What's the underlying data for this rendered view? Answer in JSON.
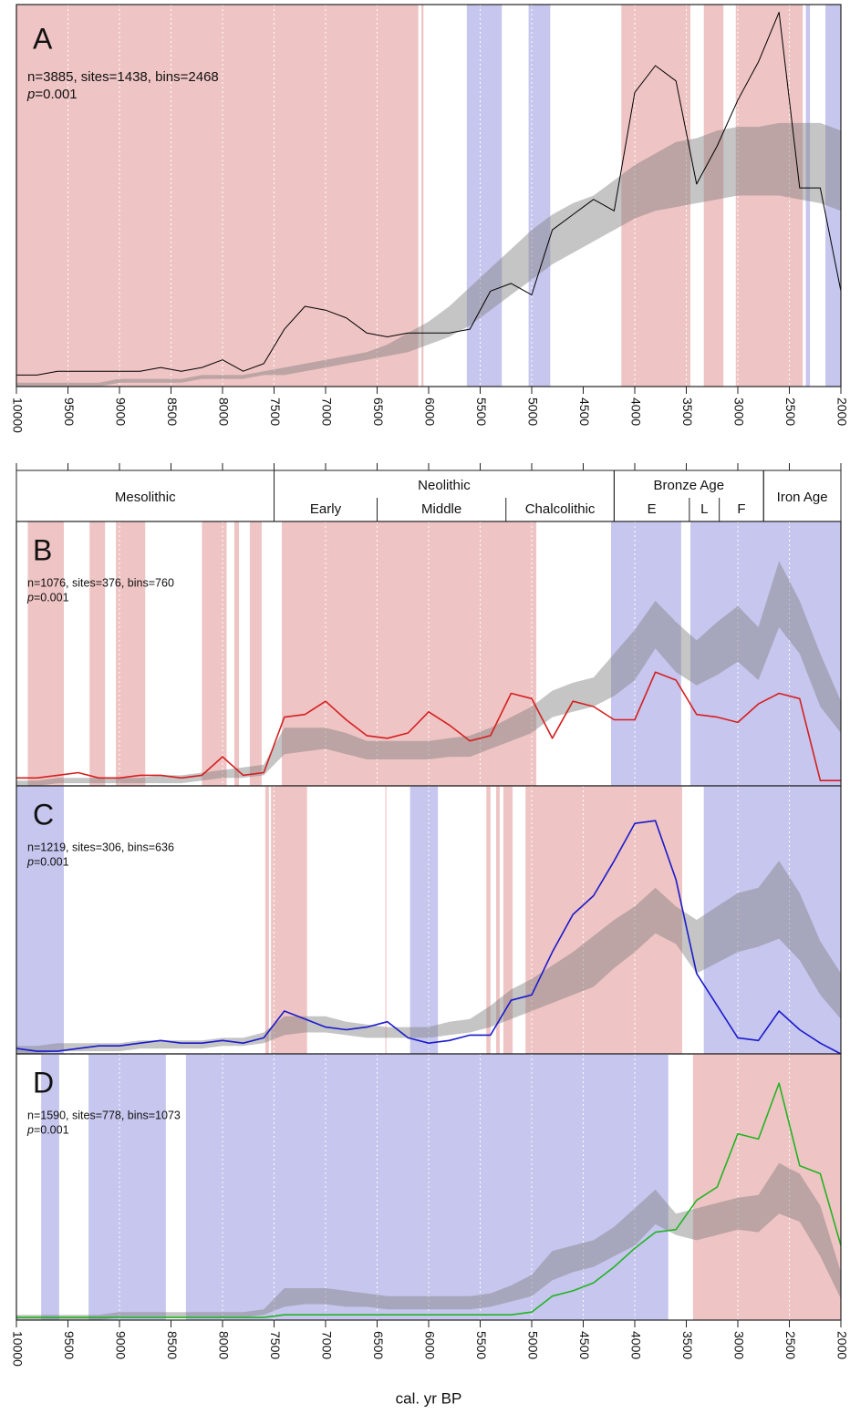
{
  "chart_data": [
    {
      "type": "line",
      "label": "A",
      "stats": "n=3885, sites=1438, bins=2468",
      "stat_symbol": "p",
      "stat_value": "=0.001",
      "xlim": [
        10000,
        2000
      ],
      "ylim": [
        0,
        1
      ],
      "grid": true,
      "color": "#000000",
      "xticks": [
        10000,
        9500,
        9000,
        8500,
        8000,
        7500,
        7000,
        6500,
        6000,
        5500,
        5000,
        4500,
        4000,
        3500,
        3000,
        2500,
        2000
      ],
      "x": [
        10000,
        9800,
        9600,
        9400,
        9200,
        9000,
        8800,
        8600,
        8400,
        8200,
        8000,
        7800,
        7600,
        7400,
        7200,
        7000,
        6800,
        6600,
        6400,
        6200,
        6000,
        5800,
        5600,
        5400,
        5200,
        5000,
        4800,
        4600,
        4400,
        4200,
        4000,
        3800,
        3600,
        3400,
        3200,
        3000,
        2800,
        2600,
        2400,
        2200,
        2000
      ],
      "values": [
        0.03,
        0.03,
        0.04,
        0.04,
        0.04,
        0.04,
        0.04,
        0.05,
        0.04,
        0.05,
        0.07,
        0.04,
        0.06,
        0.15,
        0.21,
        0.2,
        0.18,
        0.14,
        0.13,
        0.14,
        0.14,
        0.14,
        0.15,
        0.25,
        0.27,
        0.24,
        0.41,
        0.45,
        0.49,
        0.46,
        0.77,
        0.84,
        0.8,
        0.53,
        0.63,
        0.75,
        0.85,
        0.98,
        0.52,
        0.52,
        0.25
      ],
      "envelope": {
        "color": "#7f7f7f",
        "lower": [
          0.0,
          0.0,
          0.0,
          0.0,
          0.0,
          0.01,
          0.01,
          0.01,
          0.01,
          0.02,
          0.02,
          0.02,
          0.03,
          0.03,
          0.04,
          0.05,
          0.06,
          0.07,
          0.08,
          0.09,
          0.11,
          0.13,
          0.16,
          0.2,
          0.24,
          0.28,
          0.32,
          0.35,
          0.38,
          0.41,
          0.44,
          0.46,
          0.47,
          0.48,
          0.49,
          0.5,
          0.5,
          0.5,
          0.49,
          0.48,
          0.46
        ],
        "upper": [
          0.01,
          0.01,
          0.01,
          0.01,
          0.01,
          0.02,
          0.02,
          0.02,
          0.02,
          0.03,
          0.03,
          0.03,
          0.04,
          0.05,
          0.06,
          0.07,
          0.08,
          0.09,
          0.11,
          0.14,
          0.17,
          0.21,
          0.26,
          0.31,
          0.36,
          0.41,
          0.45,
          0.48,
          0.5,
          0.54,
          0.58,
          0.61,
          0.64,
          0.65,
          0.67,
          0.68,
          0.68,
          0.69,
          0.69,
          0.69,
          0.67
        ]
      },
      "positive_color": "#efc4c4",
      "negative_color": "#c6c6ee",
      "positive_bands": [
        [
          10000,
          6100
        ],
        [
          6070,
          6050
        ],
        [
          4130,
          3460
        ],
        [
          3330,
          3140
        ],
        [
          3020,
          2370
        ]
      ],
      "negative_bands": [
        [
          5630,
          5290
        ],
        [
          5030,
          4820
        ],
        [
          2340,
          2300
        ],
        [
          2150,
          2000
        ]
      ]
    },
    {
      "type": "line",
      "label": "B",
      "stats": "n=1076, sites=376, bins=760",
      "stat_symbol": "p",
      "stat_value": "=0.001",
      "xlim": [
        10000,
        2000
      ],
      "ylim": [
        0,
        1
      ],
      "grid": true,
      "color": "#d42020",
      "x": [
        10000,
        9800,
        9600,
        9400,
        9200,
        9000,
        8800,
        8600,
        8400,
        8200,
        8000,
        7800,
        7600,
        7400,
        7200,
        7000,
        6800,
        6600,
        6400,
        6200,
        6000,
        5800,
        5600,
        5400,
        5200,
        5000,
        4800,
        4600,
        4400,
        4200,
        4000,
        3800,
        3600,
        3400,
        3200,
        3000,
        2800,
        2600,
        2400,
        2200,
        2000
      ],
      "values": [
        0.03,
        0.03,
        0.04,
        0.05,
        0.03,
        0.03,
        0.04,
        0.04,
        0.03,
        0.04,
        0.11,
        0.04,
        0.05,
        0.26,
        0.27,
        0.32,
        0.25,
        0.19,
        0.18,
        0.2,
        0.28,
        0.23,
        0.17,
        0.19,
        0.35,
        0.33,
        0.18,
        0.32,
        0.3,
        0.25,
        0.25,
        0.43,
        0.4,
        0.27,
        0.26,
        0.24,
        0.31,
        0.35,
        0.33,
        0.02,
        0.02
      ],
      "envelope": {
        "color": "#7f7f7f",
        "lower": [
          0.0,
          0.0,
          0.01,
          0.01,
          0.01,
          0.01,
          0.01,
          0.01,
          0.01,
          0.02,
          0.03,
          0.03,
          0.04,
          0.12,
          0.13,
          0.14,
          0.12,
          0.1,
          0.1,
          0.1,
          0.1,
          0.11,
          0.11,
          0.14,
          0.17,
          0.2,
          0.26,
          0.28,
          0.3,
          0.34,
          0.4,
          0.52,
          0.43,
          0.38,
          0.42,
          0.47,
          0.4,
          0.6,
          0.5,
          0.3,
          0.2
        ],
        "upper": [
          0.02,
          0.02,
          0.03,
          0.03,
          0.03,
          0.03,
          0.03,
          0.04,
          0.04,
          0.05,
          0.06,
          0.07,
          0.08,
          0.22,
          0.22,
          0.22,
          0.2,
          0.17,
          0.17,
          0.17,
          0.17,
          0.18,
          0.19,
          0.22,
          0.26,
          0.3,
          0.36,
          0.39,
          0.41,
          0.5,
          0.59,
          0.7,
          0.62,
          0.55,
          0.62,
          0.68,
          0.6,
          0.85,
          0.7,
          0.5,
          0.32
        ]
      },
      "positive_color": "#efc4c4",
      "negative_color": "#c6c6ee",
      "positive_bands": [
        [
          9890,
          9540
        ],
        [
          9290,
          9140
        ],
        [
          9035,
          8750
        ],
        [
          8200,
          7960
        ],
        [
          7885,
          7840
        ],
        [
          7735,
          7620
        ],
        [
          7425,
          4955
        ]
      ],
      "negative_bands": [
        [
          4230,
          3550
        ],
        [
          3460,
          2000
        ]
      ]
    },
    {
      "type": "line",
      "label": "C",
      "stats": "n=1219, sites=306, bins=636",
      "stat_symbol": "p",
      "stat_value": "=0.001",
      "xlim": [
        10000,
        2000
      ],
      "ylim": [
        0,
        1
      ],
      "grid": true,
      "color": "#1a1acc",
      "x": [
        10000,
        9800,
        9600,
        9400,
        9200,
        9000,
        8800,
        8600,
        8400,
        8200,
        8000,
        7800,
        7600,
        7400,
        7200,
        7000,
        6800,
        6600,
        6400,
        6200,
        6000,
        5800,
        5600,
        5400,
        5200,
        5000,
        4800,
        4600,
        4400,
        4200,
        4000,
        3800,
        3600,
        3400,
        3200,
        3000,
        2800,
        2600,
        2400,
        2200,
        2000
      ],
      "values": [
        0.02,
        0.01,
        0.01,
        0.02,
        0.03,
        0.03,
        0.04,
        0.05,
        0.04,
        0.04,
        0.05,
        0.04,
        0.06,
        0.16,
        0.13,
        0.1,
        0.09,
        0.1,
        0.12,
        0.06,
        0.04,
        0.05,
        0.07,
        0.07,
        0.2,
        0.22,
        0.38,
        0.52,
        0.59,
        0.72,
        0.86,
        0.87,
        0.65,
        0.3,
        0.18,
        0.06,
        0.05,
        0.16,
        0.09,
        0.04,
        0.0
      ],
      "envelope": {
        "color": "#7f7f7f",
        "lower": [
          0.0,
          0.0,
          0.01,
          0.01,
          0.01,
          0.01,
          0.02,
          0.02,
          0.02,
          0.02,
          0.03,
          0.03,
          0.04,
          0.07,
          0.08,
          0.08,
          0.07,
          0.06,
          0.06,
          0.06,
          0.06,
          0.07,
          0.08,
          0.1,
          0.13,
          0.16,
          0.19,
          0.22,
          0.25,
          0.32,
          0.38,
          0.45,
          0.41,
          0.3,
          0.34,
          0.38,
          0.4,
          0.43,
          0.35,
          0.22,
          0.13
        ],
        "upper": [
          0.03,
          0.03,
          0.04,
          0.04,
          0.04,
          0.04,
          0.05,
          0.05,
          0.05,
          0.05,
          0.06,
          0.06,
          0.08,
          0.14,
          0.14,
          0.14,
          0.12,
          0.11,
          0.1,
          0.1,
          0.1,
          0.12,
          0.13,
          0.18,
          0.24,
          0.28,
          0.33,
          0.38,
          0.44,
          0.5,
          0.55,
          0.62,
          0.55,
          0.5,
          0.55,
          0.6,
          0.62,
          0.72,
          0.6,
          0.42,
          0.3
        ]
      },
      "positive_color": "#efc4c4",
      "negative_color": "#c6c6ee",
      "positive_bands": [
        [
          7585,
          7550
        ],
        [
          7530,
          7180
        ],
        [
          6420,
          6410
        ],
        [
          5440,
          5400
        ],
        [
          5345,
          5310
        ],
        [
          5275,
          5185
        ],
        [
          5060,
          3540
        ]
      ],
      "negative_bands": [
        [
          10000,
          9540
        ],
        [
          6180,
          5910
        ],
        [
          3330,
          2000
        ]
      ]
    },
    {
      "type": "line",
      "label": "D",
      "stats": "n=1590, sites=778, bins=1073",
      "stat_symbol": "p",
      "stat_value": "=0.001",
      "xlim": [
        10000,
        2000
      ],
      "ylim": [
        0,
        1
      ],
      "grid": true,
      "color": "#22b422",
      "xlabel": "cal. yr BP",
      "xticks": [
        10000,
        9500,
        9000,
        8500,
        8000,
        7500,
        7000,
        6500,
        6000,
        5500,
        5000,
        4500,
        4000,
        3500,
        3000,
        2500,
        2000
      ],
      "x": [
        10000,
        9800,
        9600,
        9400,
        9200,
        9000,
        8800,
        8600,
        8400,
        8200,
        8000,
        7800,
        7600,
        7400,
        7200,
        7000,
        6800,
        6600,
        6400,
        6200,
        6000,
        5800,
        5600,
        5400,
        5200,
        5000,
        4800,
        4600,
        4400,
        4200,
        4000,
        3800,
        3600,
        3400,
        3200,
        3000,
        2800,
        2600,
        2400,
        2200,
        2000
      ],
      "values": [
        0.01,
        0.01,
        0.01,
        0.01,
        0.01,
        0.01,
        0.01,
        0.01,
        0.01,
        0.01,
        0.01,
        0.01,
        0.01,
        0.02,
        0.02,
        0.02,
        0.02,
        0.02,
        0.02,
        0.02,
        0.02,
        0.02,
        0.02,
        0.02,
        0.02,
        0.03,
        0.09,
        0.11,
        0.14,
        0.2,
        0.27,
        0.33,
        0.34,
        0.45,
        0.5,
        0.7,
        0.68,
        0.89,
        0.58,
        0.55,
        0.28
      ],
      "envelope": {
        "color": "#7f7f7f",
        "lower": [
          0.0,
          0.0,
          0.0,
          0.0,
          0.0,
          0.01,
          0.01,
          0.01,
          0.01,
          0.01,
          0.01,
          0.01,
          0.02,
          0.05,
          0.06,
          0.06,
          0.05,
          0.05,
          0.04,
          0.04,
          0.04,
          0.04,
          0.04,
          0.05,
          0.07,
          0.09,
          0.15,
          0.18,
          0.2,
          0.24,
          0.28,
          0.36,
          0.32,
          0.3,
          0.32,
          0.34,
          0.33,
          0.4,
          0.37,
          0.24,
          0.08
        ],
        "upper": [
          0.02,
          0.02,
          0.02,
          0.02,
          0.02,
          0.03,
          0.03,
          0.03,
          0.03,
          0.03,
          0.03,
          0.03,
          0.04,
          0.12,
          0.12,
          0.12,
          0.11,
          0.1,
          0.09,
          0.09,
          0.09,
          0.09,
          0.09,
          0.1,
          0.13,
          0.17,
          0.26,
          0.28,
          0.3,
          0.35,
          0.42,
          0.49,
          0.4,
          0.42,
          0.44,
          0.46,
          0.47,
          0.59,
          0.55,
          0.43,
          0.18
        ]
      },
      "positive_color": "#efc4c4",
      "negative_color": "#c6c6ee",
      "positive_bands": [
        [
          3435,
          2000
        ]
      ],
      "negative_bands": [
        [
          9760,
          9585
        ],
        [
          9300,
          8550
        ],
        [
          8355,
          3675
        ]
      ]
    }
  ],
  "periods": [
    {
      "label": "Mesolithic",
      "start": 10000,
      "end": 7500
    },
    {
      "label": "Neolithic",
      "start": 7500,
      "end": 4200,
      "subperiods": [
        {
          "label": "Early",
          "start": 7500,
          "end": 6500
        },
        {
          "label": "Middle",
          "start": 6500,
          "end": 5250
        },
        {
          "label": "Chalcolithic",
          "start": 5250,
          "end": 4200
        }
      ]
    },
    {
      "label": "Bronze Age",
      "start": 4200,
      "end": 2750,
      "subperiods": [
        {
          "label": "E",
          "start": 4200,
          "end": 3470
        },
        {
          "label": "L",
          "start": 3470,
          "end": 3180
        },
        {
          "label": "F",
          "start": 3180,
          "end": 2750
        }
      ]
    },
    {
      "label": "Iron Age",
      "start": 2750,
      "end": 2000
    }
  ]
}
